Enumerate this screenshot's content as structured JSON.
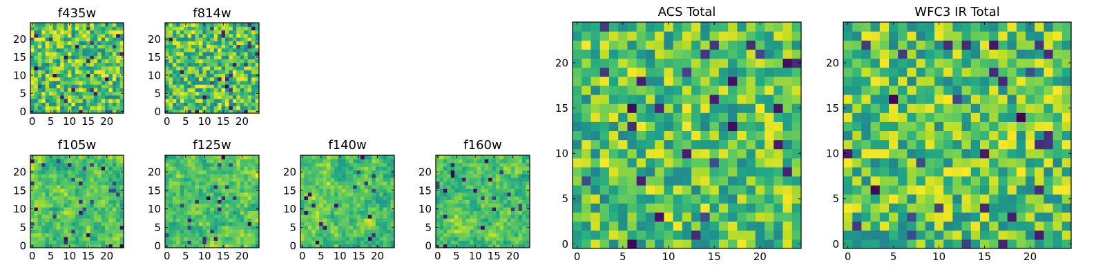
{
  "chart_data": [
    {
      "type": "heatmap",
      "title": "f435w",
      "size": 25,
      "seed": 11,
      "smooth": 0,
      "xticks": [
        0,
        5,
        10,
        15,
        20
      ],
      "yticks": [
        0,
        5,
        10,
        15,
        20
      ],
      "xlim": [
        -0.5,
        24.5
      ],
      "ylim": [
        -0.5,
        24.5
      ],
      "colormap": "viridis"
    },
    {
      "type": "heatmap",
      "title": "f814w",
      "size": 25,
      "seed": 23,
      "smooth": 0,
      "xticks": [
        0,
        5,
        10,
        15,
        20
      ],
      "yticks": [
        0,
        5,
        10,
        15,
        20
      ],
      "xlim": [
        -0.5,
        24.5
      ],
      "ylim": [
        -0.5,
        24.5
      ],
      "colormap": "viridis"
    },
    {
      "type": "heatmap",
      "title": "f105w",
      "size": 25,
      "seed": 37,
      "smooth": 1,
      "xticks": [
        0,
        5,
        10,
        15,
        20
      ],
      "yticks": [
        0,
        5,
        10,
        15,
        20
      ],
      "xlim": [
        -0.5,
        24.5
      ],
      "ylim": [
        -0.5,
        24.5
      ],
      "colormap": "viridis"
    },
    {
      "type": "heatmap",
      "title": "f125w",
      "size": 25,
      "seed": 41,
      "smooth": 1,
      "xticks": [
        0,
        5,
        10,
        15,
        20
      ],
      "yticks": [
        0,
        5,
        10,
        15,
        20
      ],
      "xlim": [
        -0.5,
        24.5
      ],
      "ylim": [
        -0.5,
        24.5
      ],
      "colormap": "viridis"
    },
    {
      "type": "heatmap",
      "title": "f140w",
      "size": 25,
      "seed": 53,
      "smooth": 1,
      "xticks": [
        0,
        5,
        10,
        15,
        20
      ],
      "yticks": [
        0,
        5,
        10,
        15,
        20
      ],
      "xlim": [
        -0.5,
        24.5
      ],
      "ylim": [
        -0.5,
        24.5
      ],
      "colormap": "viridis"
    },
    {
      "type": "heatmap",
      "title": "f160w",
      "size": 25,
      "seed": 67,
      "smooth": 1,
      "xticks": [
        0,
        5,
        10,
        15,
        20
      ],
      "yticks": [
        0,
        5,
        10,
        15,
        20
      ],
      "xlim": [
        -0.5,
        24.5
      ],
      "ylim": [
        -0.5,
        24.5
      ],
      "colormap": "viridis"
    },
    {
      "type": "heatmap",
      "title": "ACS Total",
      "size": 25,
      "seed": 79,
      "smooth": 0,
      "xticks": [
        0,
        5,
        10,
        15,
        20
      ],
      "yticks": [
        0,
        5,
        10,
        15,
        20
      ],
      "xlim": [
        -0.5,
        24.5
      ],
      "ylim": [
        -0.5,
        24.5
      ],
      "colormap": "viridis"
    },
    {
      "type": "heatmap",
      "title": "WFC3 IR Total",
      "size": 25,
      "seed": 97,
      "smooth": 0,
      "xticks": [
        0,
        5,
        10,
        15,
        20
      ],
      "yticks": [
        0,
        5,
        10,
        15,
        20
      ],
      "xlim": [
        -0.5,
        24.5
      ],
      "ylim": [
        -0.5,
        24.5
      ],
      "colormap": "viridis"
    }
  ]
}
